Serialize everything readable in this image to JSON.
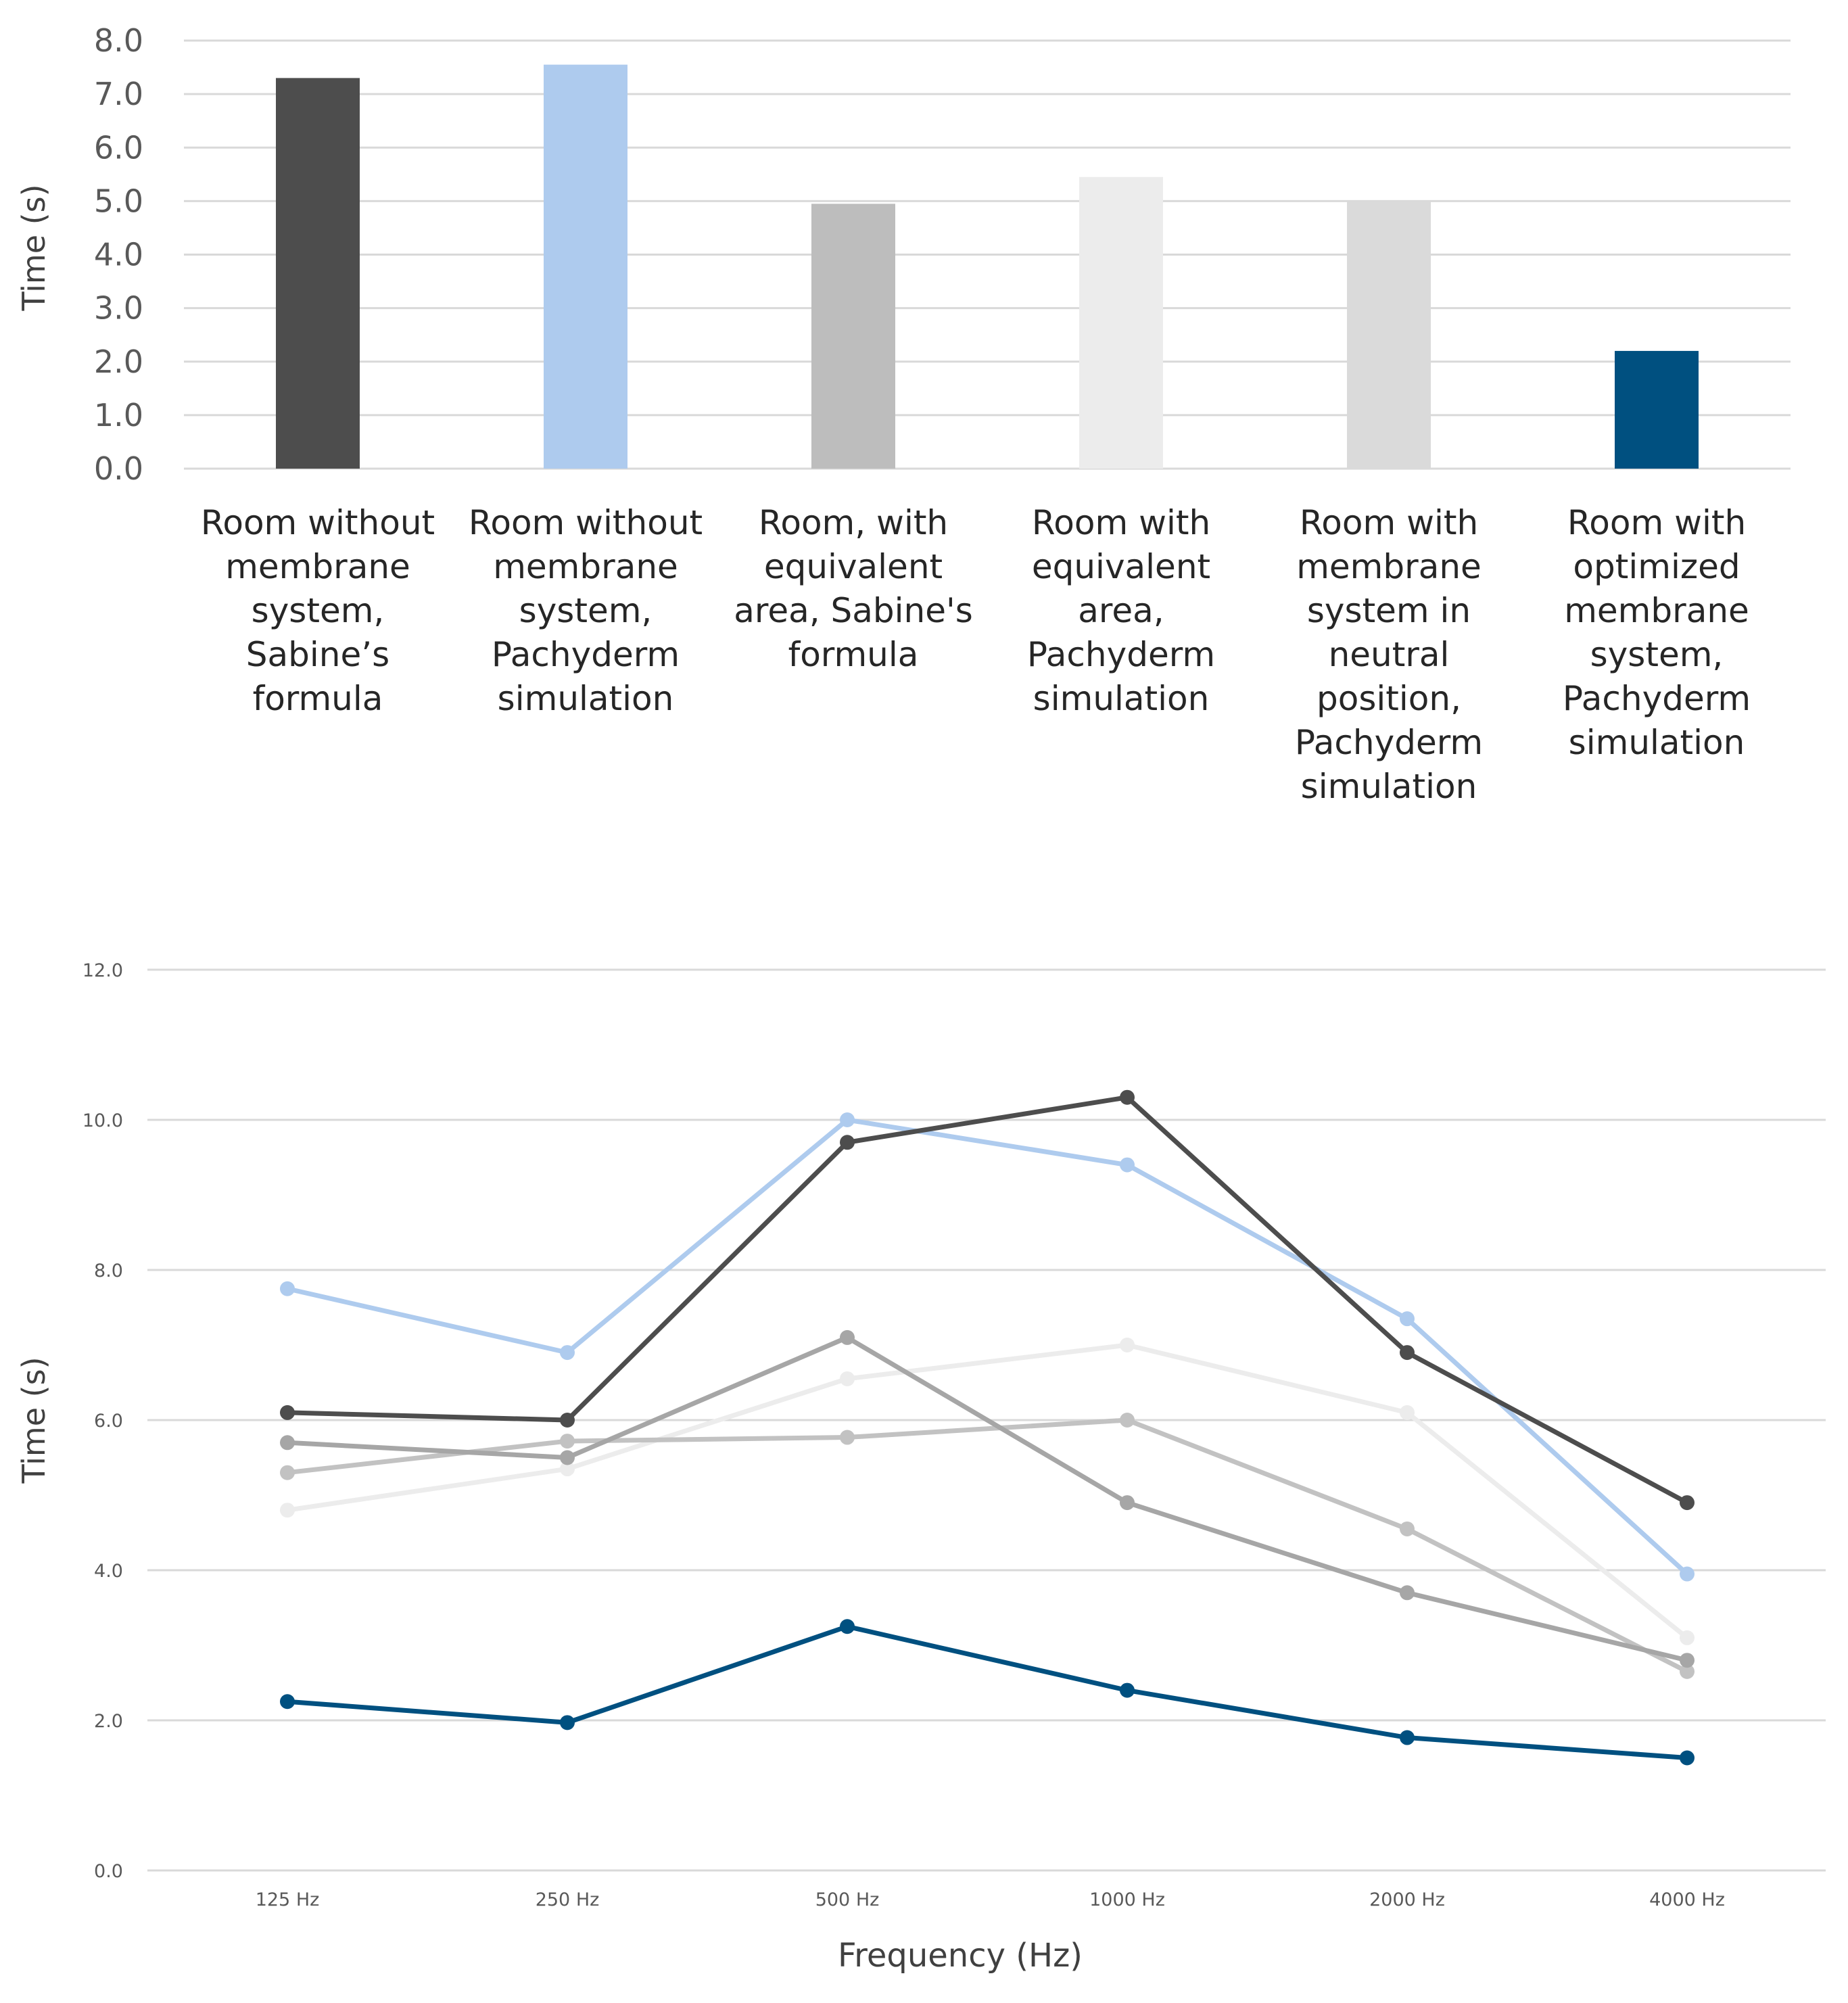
{
  "chart_data": [
    {
      "type": "bar",
      "title": "",
      "ylabel": "Time (s)",
      "xlabel": "",
      "ylim": [
        0,
        8
      ],
      "yticks": [
        "0.0",
        "1.0",
        "2.0",
        "3.0",
        "4.0",
        "5.0",
        "6.0",
        "7.0",
        "8.0"
      ],
      "grid": true,
      "categories": [
        [
          "Room without",
          "membrane",
          "system,",
          "Sabine’s",
          "formula"
        ],
        [
          "Room without",
          "membrane",
          "system,",
          "Pachyderm",
          "simulation"
        ],
        [
          "Room, with",
          "equivalent",
          "area, Sabine's",
          "formula"
        ],
        [
          "Room with",
          "equivalent",
          "area,",
          "Pachyderm",
          "simulation"
        ],
        [
          "Room with",
          "membrane",
          "system in",
          "neutral",
          "position,",
          "Pachyderm",
          "simulation"
        ],
        [
          "Room with",
          "optimized",
          "membrane",
          "system,",
          "Pachyderm",
          "simulation"
        ]
      ],
      "values": [
        7.3,
        7.55,
        4.95,
        5.45,
        5.0,
        2.2
      ],
      "colors": [
        "#4d4d4d",
        "#aecbee",
        "#bdbdbd",
        "#ececec",
        "#dadada",
        "#005080"
      ]
    },
    {
      "type": "line",
      "title": "",
      "xlabel": "Frequency (Hz)",
      "ylabel": "Time (s)",
      "ylim": [
        0,
        12
      ],
      "yticks": [
        "0.0",
        "2.0",
        "4.0",
        "6.0",
        "8.0",
        "10.0",
        "12.0"
      ],
      "grid": true,
      "categories": [
        "125 Hz",
        "250 Hz",
        "500 Hz",
        "1000 Hz",
        "2000 Hz",
        "4000 Hz"
      ],
      "series": [
        {
          "name": "Room without membrane system, Sabine’s formula",
          "color": "#4d4d4d",
          "values": [
            6.1,
            6.0,
            9.7,
            10.3,
            6.9,
            4.9
          ]
        },
        {
          "name": "Room without membrane system, Pachyderm simulation",
          "color": "#aecbee",
          "values": [
            7.75,
            6.9,
            10.0,
            9.4,
            7.35,
            3.95
          ]
        },
        {
          "name": "Room, with equivalent area, Sabine's formula",
          "color": "#a6a6a6",
          "values": [
            5.7,
            5.5,
            7.1,
            4.9,
            3.7,
            2.8
          ]
        },
        {
          "name": "Room with equivalent area, Pachyderm simulation",
          "color": "#ececec",
          "values": [
            4.8,
            5.35,
            6.55,
            7.0,
            6.1,
            3.1
          ]
        },
        {
          "name": "Room with membrane system in neutral position, Pachyderm simulation",
          "color": "#c2c2c2",
          "values": [
            5.3,
            5.72,
            5.77,
            6.0,
            4.55,
            2.65
          ]
        },
        {
          "name": "Room with optimized membrane system, Pachyderm simulation",
          "color": "#005080",
          "values": [
            2.25,
            1.97,
            3.25,
            2.4,
            1.77,
            1.5
          ]
        }
      ]
    }
  ]
}
